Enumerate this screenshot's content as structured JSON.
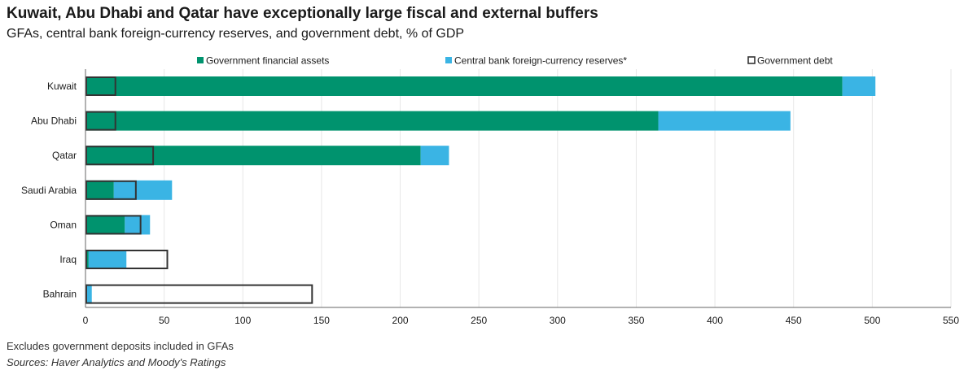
{
  "header": {
    "title": "Kuwait, Abu Dhabi and Qatar have exceptionally large fiscal and external buffers",
    "subtitle": "GFAs, central bank foreign-currency reserves, and government debt, % of GDP"
  },
  "footer": {
    "note": "Excludes government deposits included in GFAs",
    "sources": "Sources: Haver Analytics and Moody's Ratings"
  },
  "colors": {
    "gfa": "#00936e",
    "reserves": "#3ab4e4",
    "debt_outline": "#333333",
    "grid": "#e6e6e6",
    "axis": "#666666"
  },
  "chart_data": {
    "type": "bar",
    "orientation": "horizontal",
    "stacked": true,
    "title": "",
    "xlabel": "",
    "ylabel": "",
    "xlim": [
      0,
      550
    ],
    "xticks": [
      0,
      50,
      100,
      150,
      200,
      250,
      300,
      350,
      400,
      450,
      500,
      550
    ],
    "grid": "vertical",
    "legend": "top",
    "categories": [
      "Kuwait",
      "Abu Dhabi",
      "Qatar",
      "Saudi Arabia",
      "Oman",
      "Iraq",
      "Bahrain"
    ],
    "series": [
      {
        "name": "Government financial assets",
        "style": "fill",
        "values": [
          481,
          364,
          213,
          18,
          25,
          2,
          1
        ]
      },
      {
        "name": "Central bank foreign-currency reserves*",
        "style": "fill",
        "values": [
          21,
          84,
          18,
          37,
          16,
          24,
          3
        ]
      },
      {
        "name": "Government debt",
        "style": "outline",
        "values": [
          19,
          19,
          43,
          32,
          35,
          52,
          144
        ]
      }
    ]
  }
}
